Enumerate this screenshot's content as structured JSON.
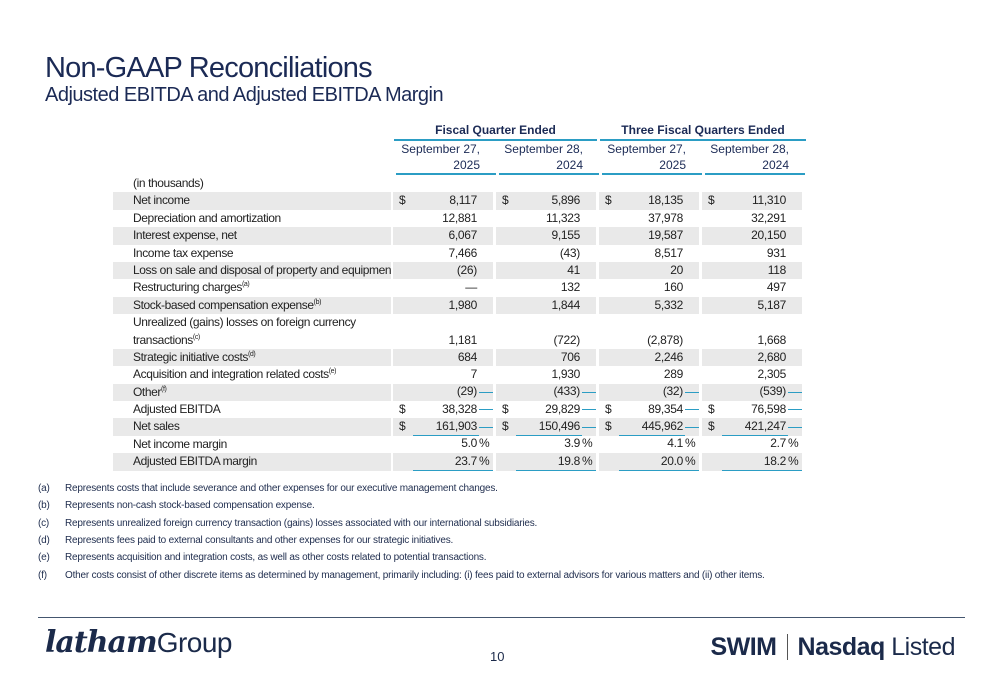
{
  "title": "Non-GAAP Reconciliations",
  "subtitle": "Adjusted EBITDA and Adjusted EBITDA Margin",
  "table": {
    "group_headers": [
      "Fiscal Quarter Ended",
      "Three Fiscal Quarters Ended"
    ],
    "columns": [
      {
        "line1": "September 27,",
        "line2": "2025"
      },
      {
        "line1": "September 28,",
        "line2": "2024"
      },
      {
        "line1": "September 27,",
        "line2": "2025"
      },
      {
        "line1": "September 28,",
        "line2": "2024"
      }
    ],
    "units": "(in thousands)",
    "rows": [
      {
        "label": "Net income",
        "cur": "$",
        "values": [
          "8,117",
          "5,896",
          "18,135",
          "11,310"
        ]
      },
      {
        "label": "Depreciation and amortization",
        "values": [
          "12,881",
          "11,323",
          "37,978",
          "32,291"
        ]
      },
      {
        "label": "Interest expense, net",
        "values": [
          "6,067",
          "9,155",
          "19,587",
          "20,150"
        ]
      },
      {
        "label": "Income tax expense",
        "values": [
          "7,466",
          "(43)",
          "8,517",
          "931"
        ]
      },
      {
        "label": "Loss on sale and disposal of property and equipment",
        "values": [
          "(26)",
          "41",
          "20",
          "118"
        ]
      },
      {
        "label": "Restructuring charges",
        "note": "(a)",
        "values": [
          "—",
          "132",
          "160",
          "497"
        ]
      },
      {
        "label": "Stock-based compensation expense",
        "note": "(b)",
        "values": [
          "1,980",
          "1,844",
          "5,332",
          "5,187"
        ]
      },
      {
        "label": "Unrealized (gains) losses on foreign currency",
        "label2": "transactions",
        "note": "(c)",
        "values": [
          "1,181",
          "(722)",
          "(2,878)",
          "1,668"
        ]
      },
      {
        "label": "Strategic initiative costs",
        "note": "(d)",
        "values": [
          "684",
          "706",
          "2,246",
          "2,680"
        ]
      },
      {
        "label": "Acquisition and integration related costs",
        "note": "(e)",
        "values": [
          "7",
          "1,930",
          "289",
          "2,305"
        ]
      },
      {
        "label": "Other",
        "note": "(f)",
        "values": [
          "(29)",
          "(433)",
          "(32)",
          "(539)"
        ]
      },
      {
        "label": "Adjusted EBITDA",
        "cur": "$",
        "values": [
          "38,328",
          "29,829",
          "89,354",
          "76,598"
        ]
      },
      {
        "label": "Net sales",
        "cur": "$",
        "values": [
          "161,903",
          "150,496",
          "445,962",
          "421,247"
        ]
      },
      {
        "label": "Net income margin",
        "pct": "%",
        "values": [
          "5.0",
          "3.9",
          "4.1",
          "2.7"
        ]
      },
      {
        "label": "Adjusted EBITDA margin",
        "pct": "%",
        "values": [
          "23.7",
          "19.8",
          "20.0",
          "18.2"
        ]
      }
    ]
  },
  "footnotes": [
    {
      "key": "(a)",
      "text": "Represents costs that include severance and other expenses for our executive management changes."
    },
    {
      "key": "(b)",
      "text": "Represents non-cash stock-based compensation expense."
    },
    {
      "key": "(c)",
      "text": "Represents unrealized foreign currency transaction (gains) losses associated with our international subsidiaries."
    },
    {
      "key": "(d)",
      "text": "Represents fees paid to external consultants and other expenses for our strategic initiatives."
    },
    {
      "key": "(e)",
      "text": "Represents acquisition and integration costs, as well as other costs related to potential transactions."
    },
    {
      "key": "(f)",
      "text": "Other costs consist of other discrete items as determined by management, primarily including: (i) fees paid to external advisors for various matters and (ii) other items."
    }
  ],
  "footer": {
    "logo_script": "latham",
    "logo_word": "Group",
    "page_number": "10",
    "ticker": "SWIM",
    "exchange_bold": "Nasdaq",
    "exchange_light": "Listed"
  },
  "colors": {
    "title": "#1b2a55",
    "rule": "#2b9dc4",
    "shade": "#e9e9e9"
  }
}
